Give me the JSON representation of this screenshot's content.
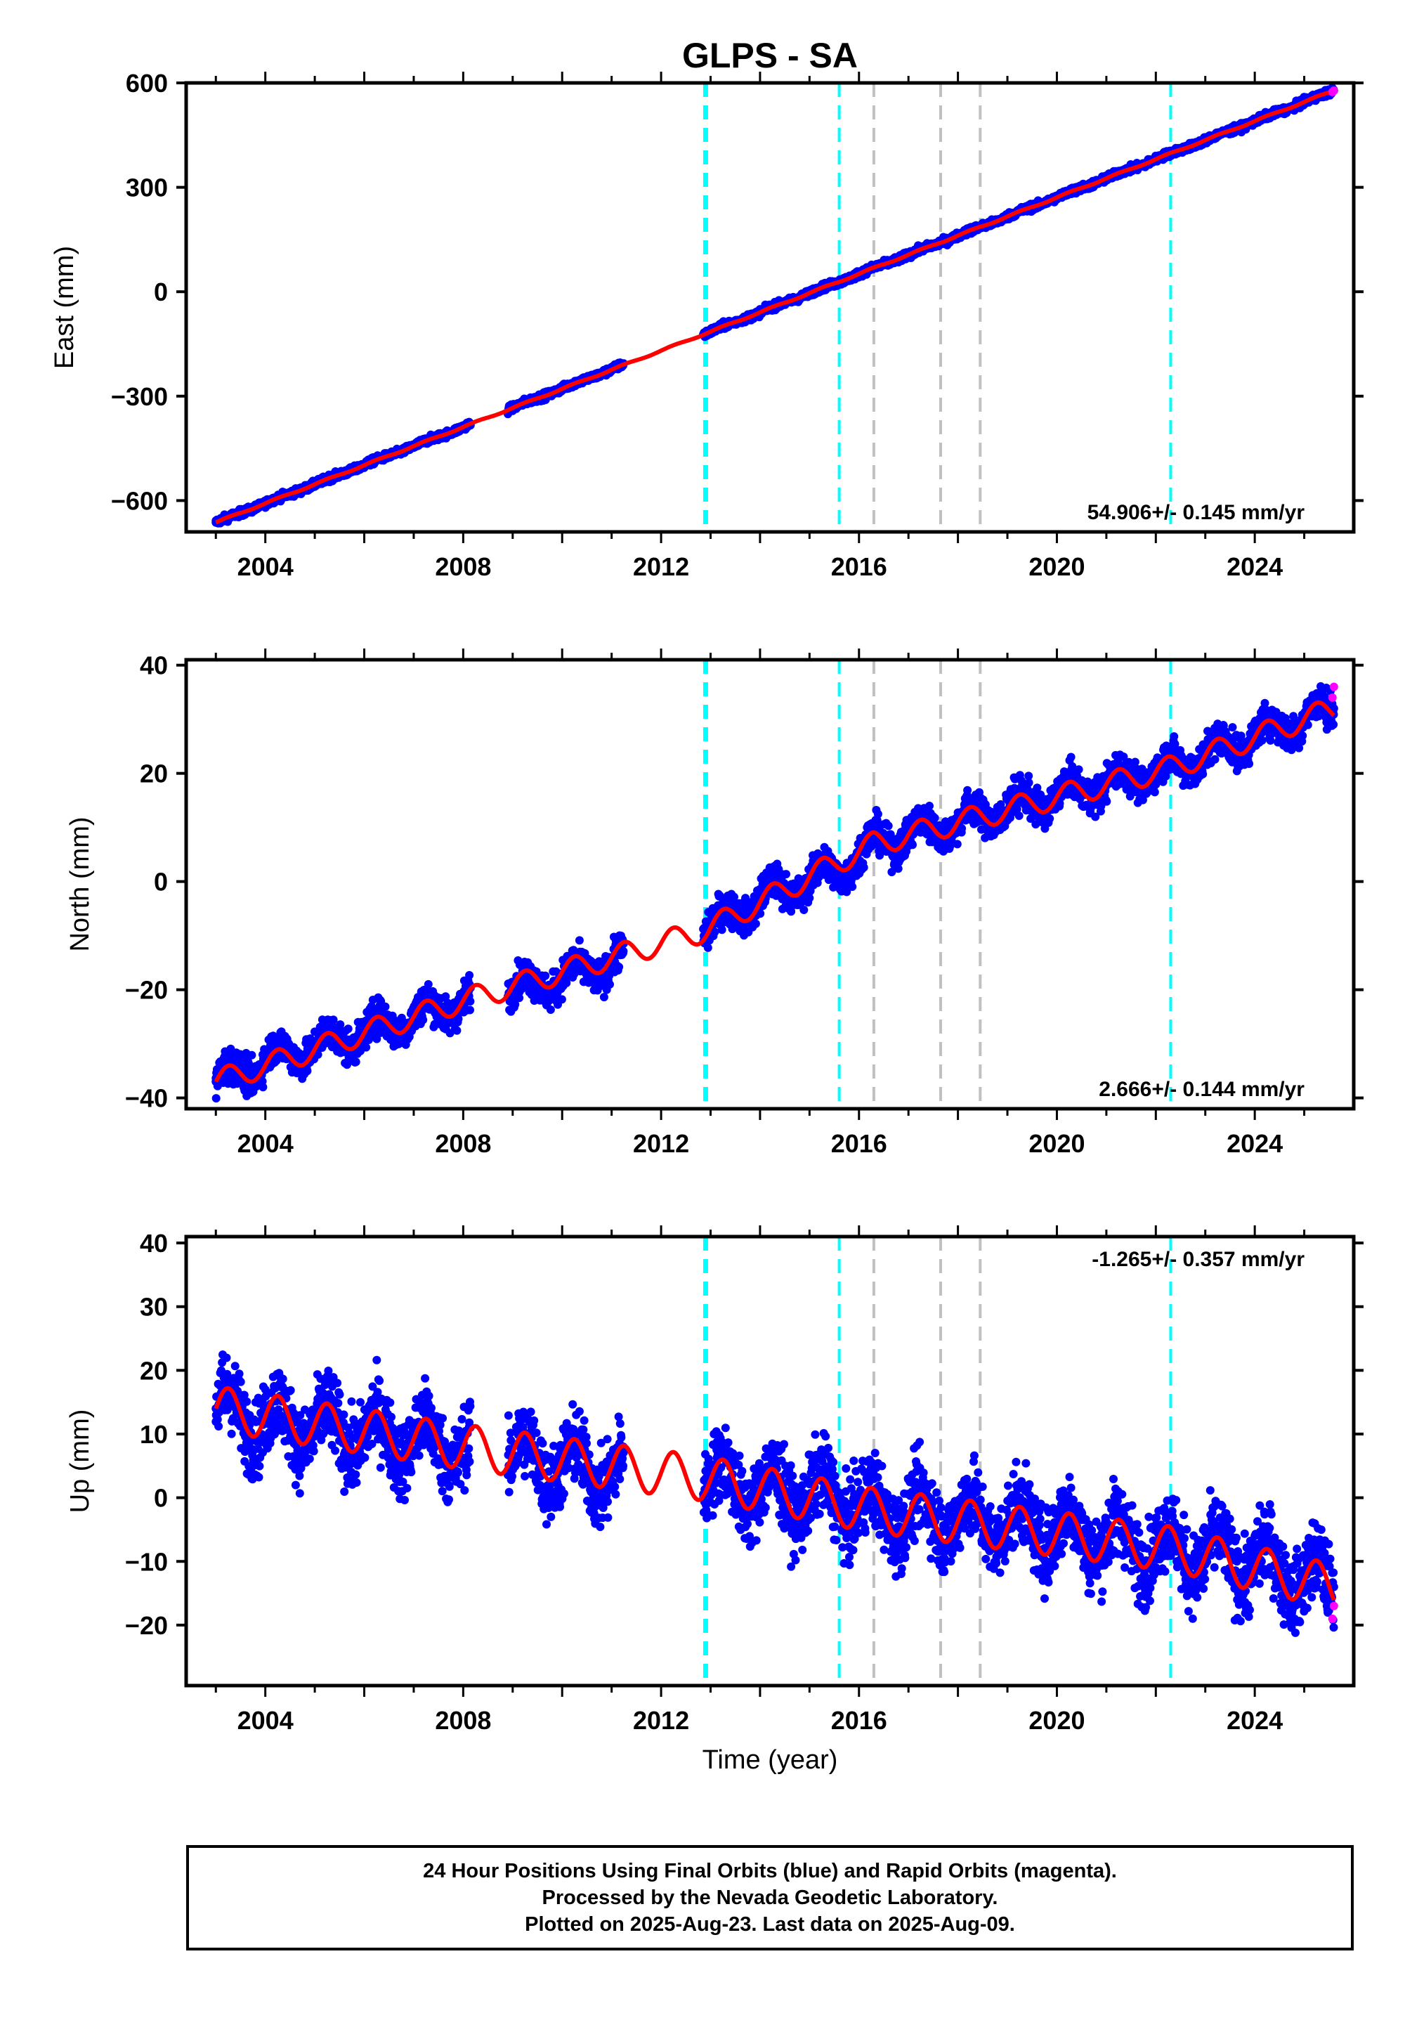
{
  "chart_data": [
    {
      "type": "scatter",
      "title": "GLPS - SA",
      "ylabel": "East (mm)",
      "xlabel": "",
      "xlim": [
        2002.4,
        2026.0
      ],
      "ylim": [
        -690,
        600
      ],
      "yticks": [
        -600,
        -300,
        0,
        300,
        600
      ],
      "ytick_labels": [
        "−600",
        "−300",
        "0",
        "300",
        "600"
      ],
      "xticks": [
        2004,
        2008,
        2012,
        2016,
        2020,
        2024
      ],
      "xtick_labels": [
        "2004",
        "2008",
        "2012",
        "2016",
        "2020",
        "2024"
      ],
      "rate_text": "54.906+/- 0.145 mm/yr",
      "series": [
        {
          "name": "Final Orbits (blue)",
          "x": [
            2003.0,
            2004.0,
            2006.0,
            2008.0,
            2008.1,
            2010.0,
            2011.2,
            2012.9,
            2014.0,
            2015.6,
            2016.3,
            2018.0,
            2020.0,
            2022.3,
            2024.0,
            2025.6
          ],
          "values": [
            -663,
            -608,
            -498,
            -389,
            -383,
            -278,
            -212,
            -120,
            -59,
            29,
            68,
            161,
            271,
            397,
            490,
            578
          ]
        },
        {
          "name": "Rapid Orbits (magenta)",
          "x": [
            2025.57,
            2025.6
          ],
          "values": [
            574,
            578
          ]
        },
        {
          "name": "Model",
          "x": [
            2003.0,
            2012.9,
            2016.3,
            2025.6
          ],
          "values": [
            -663,
            -120,
            68,
            578
          ]
        }
      ],
      "steps": {
        "cyan": [
          2012.9,
          2015.6,
          2022.3
        ],
        "gray": [
          2016.3,
          2017.65,
          2018.45
        ]
      }
    },
    {
      "type": "scatter",
      "ylabel": "North (mm)",
      "xlabel": "",
      "xlim": [
        2002.4,
        2026.0
      ],
      "ylim": [
        -42,
        41
      ],
      "yticks": [
        -40,
        -20,
        0,
        20,
        40
      ],
      "ytick_labels": [
        "−40",
        "−20",
        "0",
        "20",
        "40"
      ],
      "xticks": [
        2004,
        2008,
        2012,
        2016,
        2020,
        2024
      ],
      "xtick_labels": [
        "2004",
        "2008",
        "2012",
        "2016",
        "2020",
        "2024"
      ],
      "rate_text": "2.666+/- 0.144 mm/yr",
      "series": [
        {
          "name": "Final Orbits (blue)",
          "x": [
            2003.0,
            2004.0,
            2006.0,
            2008.0,
            2010.0,
            2011.0,
            2012.9,
            2014.0,
            2015.6,
            2016.3,
            2018.0,
            2020.0,
            2022.3,
            2024.0,
            2025.6
          ],
          "values": [
            -37,
            -33,
            -28,
            -22,
            -18,
            -15,
            -9,
            -3,
            2,
            7,
            11,
            16,
            21,
            27,
            32
          ]
        },
        {
          "name": "Rapid Orbits (magenta)",
          "x": [
            2025.57,
            2025.6
          ],
          "values": [
            34,
            36
          ]
        },
        {
          "name": "Model",
          "x": [
            2003.0,
            2008.0,
            2012.9,
            2016.3,
            2022.3,
            2025.6
          ],
          "values": [
            -37,
            -22,
            -9,
            7,
            21,
            32
          ]
        }
      ],
      "steps": {
        "cyan": [
          2012.9,
          2015.6,
          2022.3
        ],
        "gray": [
          2016.3,
          2017.65,
          2018.45
        ]
      }
    },
    {
      "type": "scatter",
      "ylabel": "Up (mm)",
      "xlabel": "Time (year)",
      "xlim": [
        2002.4,
        2026.0
      ],
      "ylim": [
        -29.5,
        41
      ],
      "yticks": [
        -20,
        -10,
        0,
        10,
        20,
        30,
        40
      ],
      "ytick_labels": [
        "−20",
        "−10",
        "0",
        "10",
        "20",
        "30",
        "40"
      ],
      "xticks": [
        2004,
        2008,
        2012,
        2016,
        2020,
        2024
      ],
      "xtick_labels": [
        "2004",
        "2008",
        "2012",
        "2016",
        "2020",
        "2024"
      ],
      "rate_text": "-1.265+/- 0.357 mm/yr",
      "series": [
        {
          "name": "Final Orbits (blue)",
          "x": [
            2003.0,
            2004.0,
            2006.0,
            2008.0,
            2010.0,
            2011.0,
            2012.9,
            2014.0,
            2015.6,
            2016.3,
            2018.0,
            2020.0,
            2022.3,
            2024.0,
            2025.6
          ],
          "values": [
            14,
            12,
            10,
            8,
            5,
            4,
            3,
            1,
            0,
            -2,
            -3,
            -5,
            -8,
            -10,
            -14
          ]
        },
        {
          "name": "Rapid Orbits (magenta)",
          "x": [
            2025.57,
            2025.6
          ],
          "values": [
            -19,
            -17
          ]
        },
        {
          "name": "Model",
          "x": [
            2003.0,
            2008.0,
            2012.9,
            2016.3,
            2022.3,
            2025.6
          ],
          "values": [
            14,
            8,
            3,
            -2,
            -8,
            -14
          ]
        }
      ],
      "steps": {
        "cyan": [
          2012.9,
          2015.6,
          2022.3
        ],
        "gray": [
          2016.3,
          2017.65,
          2018.45
        ]
      }
    }
  ],
  "footer": {
    "line1": "24 Hour Positions Using Final Orbits (blue) and Rapid Orbits (magenta).",
    "line2": "Processed by the Nevada Geodetic Laboratory.",
    "line3": "Plotted on 2025-Aug-23. Last data on 2025-Aug-09."
  },
  "colors": {
    "final_orbits": "#0000ff",
    "rapid_orbits": "#ff00ff",
    "model": "#ff0000",
    "step_cyan": "#00ffff",
    "step_gray": "#c0c0c0"
  }
}
